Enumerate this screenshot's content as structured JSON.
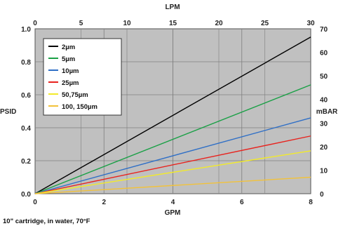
{
  "chart_data": {
    "type": "line",
    "xlabel_bottom": "GPM",
    "xlabel_top": "LPM",
    "ylabel_left": "PSID",
    "ylabel_right": "mBAR",
    "footnote": "10\" cartridge, in water, 70°F",
    "xlim": [
      0,
      8
    ],
    "ylim": [
      0,
      1.0
    ],
    "x_ticks_bottom": [
      "0",
      "2",
      "4",
      "6",
      "8"
    ],
    "x_ticks_top": [
      "0",
      "5",
      "10",
      "15",
      "20",
      "25",
      "30"
    ],
    "y_ticks_left": [
      "0.0",
      "0.2",
      "0.4",
      "0.6",
      "0.8",
      "1.0"
    ],
    "y_ticks_right": [
      "0",
      "10",
      "20",
      "30",
      "40",
      "50",
      "60",
      "70"
    ],
    "lpm_range": [
      0,
      30
    ],
    "mbar_range": [
      0,
      70
    ],
    "grid": true,
    "legend_position": "top-left",
    "series": [
      {
        "name": "2µm",
        "color": "#000000",
        "x": [
          0,
          8
        ],
        "y": [
          0,
          0.95
        ]
      },
      {
        "name": "5µm",
        "color": "#1aa046",
        "x": [
          0,
          8
        ],
        "y": [
          0,
          0.66
        ]
      },
      {
        "name": "10µm",
        "color": "#2f6fc6",
        "x": [
          0,
          8
        ],
        "y": [
          0,
          0.46
        ]
      },
      {
        "name": "25µm",
        "color": "#e8231e",
        "x": [
          0,
          8
        ],
        "y": [
          0,
          0.35
        ]
      },
      {
        "name": "50,75µm",
        "color": "#f2ea2a",
        "x": [
          0,
          8
        ],
        "y": [
          0,
          0.26
        ]
      },
      {
        "name": "100, 150µm",
        "color": "#f2c23a",
        "x": [
          0,
          8
        ],
        "y": [
          0,
          0.1
        ]
      }
    ]
  },
  "colors": {
    "plot_background": "#c0c0c0",
    "grid": "#7f7f7f",
    "legend_background": "#ffffff"
  }
}
